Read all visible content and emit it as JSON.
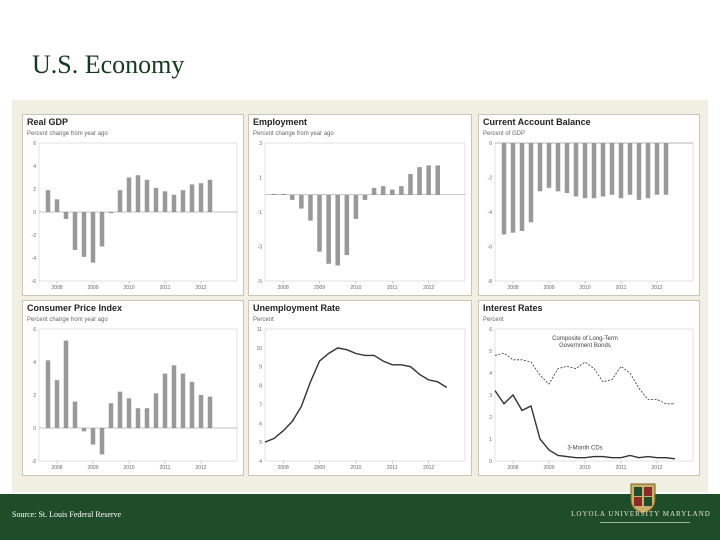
{
  "slide": {
    "title": "U.S. Economy",
    "source": "Source: St. Louis Federal Reserve",
    "university": "LOYOLA UNIVERSITY MARYLAND",
    "colors": {
      "background": "#f1efe1",
      "footer": "#1f4d2a",
      "bars": "#999999",
      "line": "#333333",
      "title": "#17391f"
    }
  },
  "chart_data": [
    {
      "id": "gdp",
      "type": "bar",
      "title": "Real GDP",
      "subtitle": "Percent change from year ago",
      "x_tick_labels": [
        "2008",
        "2009",
        "2010",
        "2011",
        "2012"
      ],
      "x_ticks": [
        2008,
        2009,
        2010,
        2011,
        2012
      ],
      "xlim": [
        2007.5,
        2013.0
      ],
      "ylim": [
        -6,
        6
      ],
      "y_ticks": [
        -6,
        -4,
        -2,
        0,
        2,
        4,
        6
      ],
      "x": [
        2007.75,
        2008.0,
        2008.25,
        2008.5,
        2008.75,
        2009.0,
        2009.25,
        2009.5,
        2009.75,
        2010.0,
        2010.25,
        2010.5,
        2010.75,
        2011.0,
        2011.25,
        2011.5,
        2011.75,
        2012.0,
        2012.25
      ],
      "values": [
        1.9,
        1.1,
        -0.6,
        -3.3,
        -3.9,
        -4.4,
        -3.0,
        -0.1,
        1.9,
        3.0,
        3.2,
        2.8,
        2.1,
        1.8,
        1.5,
        1.9,
        2.4,
        2.5,
        2.8
      ]
    },
    {
      "id": "employment",
      "type": "bar",
      "title": "Employment",
      "subtitle": "Percent change from year ago",
      "x_tick_labels": [
        "2008",
        "2009",
        "2010",
        "2011",
        "2012"
      ],
      "x_ticks": [
        2008,
        2009,
        2010,
        2011,
        2012
      ],
      "xlim": [
        2007.5,
        2013.0
      ],
      "ylim": [
        -5,
        3
      ],
      "y_ticks": [
        -5,
        -3,
        -1,
        1,
        3
      ],
      "x": [
        2007.75,
        2008.0,
        2008.25,
        2008.5,
        2008.75,
        2009.0,
        2009.25,
        2009.5,
        2009.75,
        2010.0,
        2010.25,
        2010.5,
        2010.75,
        2011.0,
        2011.25,
        2011.5,
        2011.75,
        2012.0,
        2012.25
      ],
      "values": [
        0.05,
        0.05,
        -0.3,
        -0.8,
        -1.5,
        -3.3,
        -4.0,
        -4.1,
        -3.5,
        -1.4,
        -0.3,
        0.4,
        0.5,
        0.3,
        0.5,
        1.2,
        1.6,
        1.7,
        1.7
      ]
    },
    {
      "id": "current_account",
      "type": "bar",
      "title": "Current Account Balance",
      "subtitle": "Percent of GDP",
      "x_tick_labels": [
        "2008",
        "2009",
        "2010",
        "2011",
        "2012"
      ],
      "x_ticks": [
        2008,
        2009,
        2010,
        2011,
        2012
      ],
      "xlim": [
        2007.5,
        2013.0
      ],
      "ylim": [
        -8,
        0
      ],
      "y_ticks": [
        -8,
        -6,
        -4,
        -2,
        0
      ],
      "x": [
        2007.75,
        2008.0,
        2008.25,
        2008.5,
        2008.75,
        2009.0,
        2009.25,
        2009.5,
        2009.75,
        2010.0,
        2010.25,
        2010.5,
        2010.75,
        2011.0,
        2011.25,
        2011.5,
        2011.75,
        2012.0,
        2012.25
      ],
      "values": [
        -5.3,
        -5.2,
        -5.1,
        -4.6,
        -2.8,
        -2.6,
        -2.8,
        -2.9,
        -3.1,
        -3.2,
        -3.2,
        -3.1,
        -3.0,
        -3.2,
        -3.0,
        -3.3,
        -3.2,
        -3.0,
        -3.0
      ]
    },
    {
      "id": "cpi",
      "type": "bar",
      "title": "Consumer Price Index",
      "subtitle": "Percent change from year ago",
      "x_tick_labels": [
        "2008",
        "2009",
        "2010",
        "2011",
        "2012"
      ],
      "x_ticks": [
        2008,
        2009,
        2010,
        2011,
        2012
      ],
      "xlim": [
        2007.5,
        2013.0
      ],
      "ylim": [
        -2,
        6
      ],
      "y_ticks": [
        -2,
        0,
        2,
        4,
        6
      ],
      "x": [
        2007.75,
        2008.0,
        2008.25,
        2008.5,
        2008.75,
        2009.0,
        2009.25,
        2009.5,
        2009.75,
        2010.0,
        2010.25,
        2010.5,
        2010.75,
        2011.0,
        2011.25,
        2011.5,
        2011.75,
        2012.0,
        2012.25
      ],
      "values": [
        4.1,
        2.9,
        5.3,
        1.6,
        -0.2,
        -1.0,
        -1.6,
        1.5,
        2.2,
        1.8,
        1.2,
        1.2,
        2.1,
        3.3,
        3.8,
        3.3,
        2.8,
        2.0,
        1.9
      ]
    },
    {
      "id": "unemployment",
      "type": "line",
      "title": "Unemployment Rate",
      "subtitle": "Percent",
      "x_tick_labels": [
        "2008",
        "2009",
        "2010",
        "2011",
        "2012"
      ],
      "x_ticks": [
        2008,
        2009,
        2010,
        2011,
        2012
      ],
      "xlim": [
        2007.5,
        2013.0
      ],
      "ylim": [
        4,
        11
      ],
      "y_ticks": [
        4,
        5,
        6,
        7,
        8,
        9,
        10,
        11
      ],
      "y_tick_labels": [
        "4",
        "5",
        "6",
        "7",
        "8",
        "9",
        "10",
        "11"
      ],
      "x": [
        2007.5,
        2007.75,
        2008.0,
        2008.25,
        2008.5,
        2008.75,
        2009.0,
        2009.25,
        2009.5,
        2009.75,
        2010.0,
        2010.25,
        2010.5,
        2010.75,
        2011.0,
        2011.25,
        2011.5,
        2011.75,
        2012.0,
        2012.25,
        2012.5
      ],
      "values": [
        5.0,
        5.2,
        5.6,
        6.1,
        6.9,
        8.2,
        9.3,
        9.7,
        10.0,
        9.9,
        9.7,
        9.6,
        9.6,
        9.3,
        9.1,
        9.1,
        9.0,
        8.6,
        8.3,
        8.2,
        7.9
      ]
    },
    {
      "id": "interest",
      "type": "line",
      "title": "Interest Rates",
      "subtitle": "Percent",
      "x_tick_labels": [
        "2008",
        "2009",
        "2010",
        "2011",
        "2012"
      ],
      "x_ticks": [
        2008,
        2009,
        2010,
        2011,
        2012
      ],
      "xlim": [
        2007.5,
        2013.0
      ],
      "ylim": [
        0,
        6
      ],
      "y_ticks": [
        0,
        1,
        2,
        3,
        4,
        5,
        6
      ],
      "series": [
        {
          "name": "Composite of Long-Term Government Bonds",
          "dash": true,
          "x": [
            2007.5,
            2007.75,
            2008.0,
            2008.25,
            2008.5,
            2008.75,
            2009.0,
            2009.25,
            2009.5,
            2009.75,
            2010.0,
            2010.25,
            2010.5,
            2010.75,
            2011.0,
            2011.25,
            2011.5,
            2011.75,
            2012.0,
            2012.25,
            2012.5
          ],
          "values": [
            4.8,
            4.9,
            4.6,
            4.6,
            4.5,
            3.9,
            3.5,
            4.2,
            4.3,
            4.2,
            4.5,
            4.2,
            3.6,
            3.7,
            4.3,
            4.0,
            3.3,
            2.8,
            2.8,
            2.6,
            2.6
          ]
        },
        {
          "name": "3-Month CDs",
          "dash": false,
          "x": [
            2007.5,
            2007.75,
            2008.0,
            2008.25,
            2008.5,
            2008.75,
            2009.0,
            2009.25,
            2009.5,
            2009.75,
            2010.0,
            2010.25,
            2010.5,
            2010.75,
            2011.0,
            2011.25,
            2011.5,
            2011.75,
            2012.0,
            2012.25,
            2012.5
          ],
          "values": [
            3.2,
            2.6,
            3.0,
            2.3,
            2.5,
            1.0,
            0.5,
            0.25,
            0.2,
            0.15,
            0.15,
            0.2,
            0.2,
            0.15,
            0.15,
            0.25,
            0.15,
            0.2,
            0.15,
            0.15,
            0.1
          ]
        }
      ],
      "annotations": [
        {
          "series": 0,
          "lines": [
            "Composite of Long-Term",
            "Government Bonds"
          ]
        },
        {
          "series": 1,
          "lines": [
            "3-Month CDs"
          ]
        }
      ]
    }
  ]
}
